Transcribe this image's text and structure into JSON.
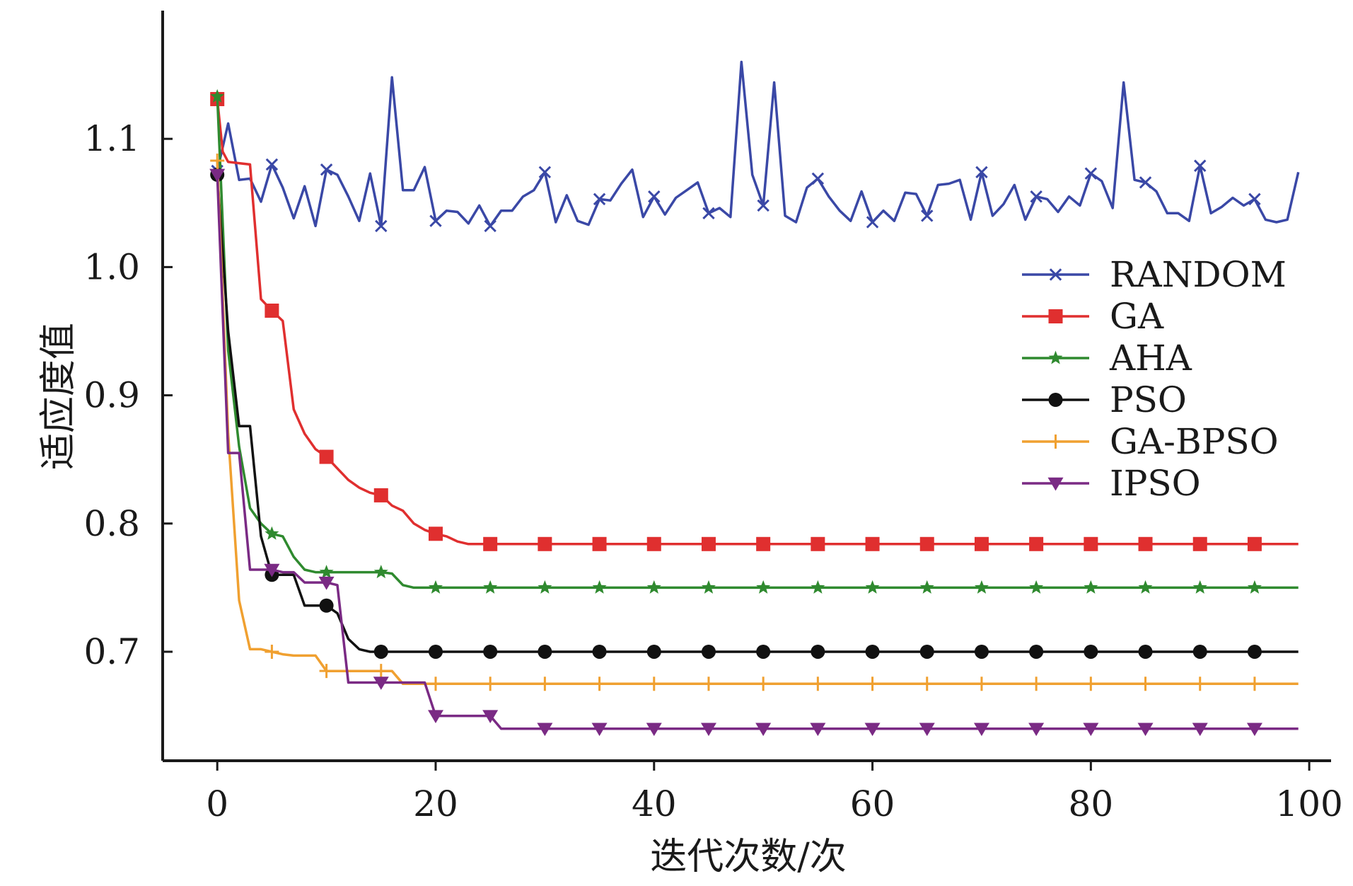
{
  "chart_data": {
    "type": "line",
    "title": "",
    "xlabel": "迭代次数/次",
    "ylabel": "适应度值",
    "xlim": [
      -5,
      102
    ],
    "ylim": [
      0.615,
      1.2
    ],
    "xticks": [
      0,
      20,
      40,
      60,
      80,
      100
    ],
    "xtick_labels": [
      "0",
      "20",
      "40",
      "60",
      "80",
      "100"
    ],
    "yticks": [
      0.7,
      0.8,
      0.9,
      1.0,
      1.1
    ],
    "ytick_labels": [
      "0.7",
      "0.8",
      "0.9",
      "1.0",
      "1.1"
    ],
    "grid": false,
    "legend_position": "center-right",
    "series": [
      {
        "name": "RANDOM",
        "color": "#3a48a6",
        "marker": "x",
        "x": [
          0,
          1,
          2,
          3,
          4,
          5,
          6,
          7,
          8,
          9,
          10,
          11,
          12,
          13,
          14,
          15,
          16,
          17,
          18,
          19,
          20,
          21,
          22,
          23,
          24,
          25,
          26,
          27,
          28,
          29,
          30,
          31,
          32,
          33,
          34,
          35,
          36,
          37,
          38,
          39,
          40,
          41,
          42,
          43,
          44,
          45,
          46,
          47,
          48,
          49,
          50,
          51,
          52,
          53,
          54,
          55,
          56,
          57,
          58,
          59,
          60,
          61,
          62,
          63,
          64,
          65,
          66,
          67,
          68,
          69,
          70,
          71,
          72,
          73,
          74,
          75,
          76,
          77,
          78,
          79,
          80,
          81,
          82,
          83,
          84,
          85,
          86,
          87,
          88,
          89,
          90,
          91,
          92,
          93,
          94,
          95,
          96,
          97,
          98,
          99
        ],
        "values": [
          1.075,
          1.112,
          1.068,
          1.069,
          1.051,
          1.08,
          1.062,
          1.038,
          1.063,
          1.032,
          1.076,
          1.072,
          1.055,
          1.036,
          1.073,
          1.032,
          1.148,
          1.06,
          1.06,
          1.078,
          1.036,
          1.044,
          1.043,
          1.034,
          1.048,
          1.032,
          1.044,
          1.044,
          1.055,
          1.06,
          1.074,
          1.035,
          1.056,
          1.036,
          1.033,
          1.053,
          1.052,
          1.065,
          1.076,
          1.039,
          1.055,
          1.041,
          1.054,
          1.06,
          1.066,
          1.042,
          1.046,
          1.039,
          1.16,
          1.072,
          1.048,
          1.144,
          1.04,
          1.035,
          1.062,
          1.069,
          1.055,
          1.044,
          1.036,
          1.059,
          1.035,
          1.044,
          1.036,
          1.058,
          1.057,
          1.04,
          1.064,
          1.065,
          1.068,
          1.037,
          1.074,
          1.04,
          1.049,
          1.064,
          1.037,
          1.055,
          1.053,
          1.043,
          1.055,
          1.048,
          1.073,
          1.067,
          1.046,
          1.144,
          1.068,
          1.066,
          1.059,
          1.042,
          1.042,
          1.036,
          1.079,
          1.042,
          1.047,
          1.054,
          1.048,
          1.053,
          1.037,
          1.035,
          1.037,
          1.074
        ]
      },
      {
        "name": "GA",
        "color": "#e02f2f",
        "marker": "s",
        "x": [
          0,
          0.5,
          1,
          2,
          3,
          4,
          5,
          6,
          7,
          8,
          9,
          10,
          11,
          12,
          13,
          14,
          15,
          16,
          17,
          18,
          19,
          20,
          21,
          22,
          23,
          25,
          30,
          35,
          40,
          45,
          50,
          55,
          60,
          65,
          70,
          75,
          80,
          85,
          90,
          95,
          99
        ],
        "values": [
          1.131,
          1.09,
          1.082,
          1.081,
          1.08,
          0.975,
          0.966,
          0.958,
          0.889,
          0.87,
          0.858,
          0.852,
          0.843,
          0.834,
          0.828,
          0.824,
          0.822,
          0.814,
          0.81,
          0.8,
          0.795,
          0.792,
          0.79,
          0.786,
          0.784,
          0.784,
          0.784,
          0.784,
          0.784,
          0.784,
          0.784,
          0.784,
          0.784,
          0.784,
          0.784,
          0.784,
          0.784,
          0.784,
          0.784,
          0.784,
          0.784
        ]
      },
      {
        "name": "AHA",
        "color": "#2f8a2f",
        "marker": "*",
        "x": [
          0,
          1,
          2,
          3,
          4,
          5,
          6,
          7,
          8,
          9,
          10,
          11,
          12,
          13,
          14,
          15,
          16,
          17,
          18,
          20,
          25,
          30,
          35,
          40,
          45,
          50,
          55,
          60,
          65,
          70,
          75,
          80,
          85,
          90,
          95,
          99
        ],
        "values": [
          1.133,
          0.935,
          0.86,
          0.812,
          0.8,
          0.792,
          0.79,
          0.774,
          0.764,
          0.762,
          0.762,
          0.762,
          0.762,
          0.762,
          0.762,
          0.762,
          0.761,
          0.752,
          0.75,
          0.75,
          0.75,
          0.75,
          0.75,
          0.75,
          0.75,
          0.75,
          0.75,
          0.75,
          0.75,
          0.75,
          0.75,
          0.75,
          0.75,
          0.75,
          0.75,
          0.75
        ]
      },
      {
        "name": "PSO",
        "color": "#111111",
        "marker": "o",
        "x": [
          0,
          1,
          2,
          3,
          4,
          5,
          6,
          7,
          8,
          9,
          10,
          11,
          12,
          13,
          14,
          15,
          20,
          25,
          30,
          35,
          40,
          45,
          50,
          55,
          60,
          65,
          70,
          75,
          80,
          85,
          90,
          95,
          99
        ],
        "values": [
          1.072,
          0.95,
          0.876,
          0.876,
          0.79,
          0.76,
          0.76,
          0.76,
          0.736,
          0.736,
          0.736,
          0.73,
          0.71,
          0.702,
          0.7,
          0.7,
          0.7,
          0.7,
          0.7,
          0.7,
          0.7,
          0.7,
          0.7,
          0.7,
          0.7,
          0.7,
          0.7,
          0.7,
          0.7,
          0.7,
          0.7,
          0.7,
          0.7
        ]
      },
      {
        "name": "GA-BPSO",
        "color": "#f0a030",
        "marker": "+",
        "x": [
          0,
          1,
          2,
          3,
          4,
          5,
          6,
          7,
          8,
          9,
          10,
          11,
          12,
          13,
          14,
          15,
          16,
          17,
          18,
          20,
          25,
          30,
          35,
          40,
          45,
          50,
          55,
          60,
          65,
          70,
          75,
          80,
          85,
          90,
          95,
          99
        ],
        "values": [
          1.083,
          0.87,
          0.74,
          0.702,
          0.702,
          0.7,
          0.698,
          0.697,
          0.697,
          0.697,
          0.685,
          0.685,
          0.685,
          0.685,
          0.685,
          0.685,
          0.685,
          0.675,
          0.675,
          0.675,
          0.675,
          0.675,
          0.675,
          0.675,
          0.675,
          0.675,
          0.675,
          0.675,
          0.675,
          0.675,
          0.675,
          0.675,
          0.675,
          0.675,
          0.675,
          0.675
        ]
      },
      {
        "name": "IPSO",
        "color": "#7a2a84",
        "marker": "v",
        "x": [
          0,
          1,
          2,
          3,
          4,
          5,
          6,
          7,
          8,
          9,
          10,
          11,
          12,
          13,
          14,
          15,
          16,
          17,
          18,
          19,
          20,
          21,
          22,
          23,
          24,
          25,
          26,
          30,
          35,
          40,
          45,
          50,
          55,
          60,
          65,
          70,
          75,
          80,
          85,
          90,
          95,
          99
        ],
        "values": [
          1.072,
          0.855,
          0.855,
          0.764,
          0.764,
          0.764,
          0.762,
          0.762,
          0.754,
          0.754,
          0.754,
          0.752,
          0.676,
          0.676,
          0.676,
          0.676,
          0.676,
          0.676,
          0.676,
          0.676,
          0.65,
          0.65,
          0.65,
          0.65,
          0.65,
          0.65,
          0.64,
          0.64,
          0.64,
          0.64,
          0.64,
          0.64,
          0.64,
          0.64,
          0.64,
          0.64,
          0.64,
          0.64,
          0.64,
          0.64,
          0.64,
          0.64
        ]
      }
    ]
  }
}
